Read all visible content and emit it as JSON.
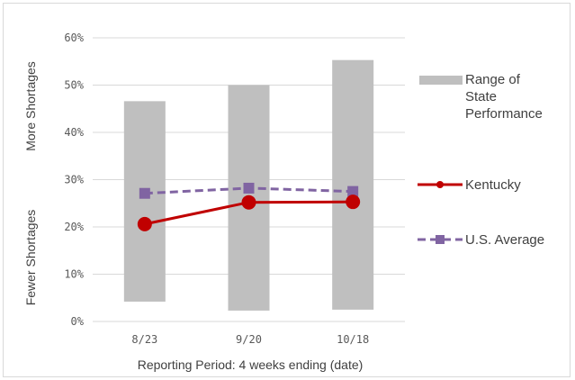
{
  "chart_data": {
    "type": "bar+line",
    "title": "",
    "xlabel": "Reporting Period: 4 weeks ending (date)",
    "ylabel_top": "More Shortages",
    "ylabel_bottom": "Fewer Shortages",
    "ylim": [
      0,
      60
    ],
    "yticks": [
      "0%",
      "10%",
      "20%",
      "30%",
      "40%",
      "50%",
      "60%"
    ],
    "ytick_values": [
      0,
      10,
      20,
      30,
      40,
      50,
      60
    ],
    "grid": true,
    "legend_position": "right",
    "categories": [
      "8/23",
      "9/20",
      "10/18"
    ],
    "range": {
      "name": "Range of State Performance",
      "low": [
        4.2,
        2.3,
        2.5
      ],
      "high": [
        46.6,
        50.0,
        55.3
      ],
      "color": "#bfbfbf"
    },
    "series": [
      {
        "name": "Kentucky",
        "values": [
          20.6,
          25.2,
          25.3
        ],
        "color": "#c00000",
        "style": "solid",
        "marker": "circle"
      },
      {
        "name": "U.S. Average",
        "values": [
          27.1,
          28.2,
          27.5
        ],
        "color": "#8064a2",
        "style": "dashed",
        "marker": "square"
      }
    ]
  },
  "legend": {
    "range_lines": [
      "Range of",
      "State",
      "Performance"
    ],
    "kentucky": "Kentucky",
    "us_average": "U.S. Average"
  }
}
